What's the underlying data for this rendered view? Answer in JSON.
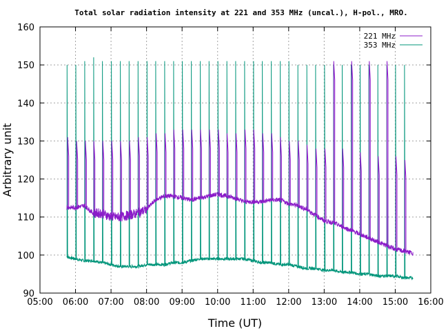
{
  "chart_data": {
    "type": "line",
    "title": "Total solar radiation intensity at 221 and 353 MHz (uncal.), H-pol., MRO.",
    "xlabel": "Time (UT)",
    "ylabel": "Arbitrary unit",
    "xlim_hours": [
      5,
      16
    ],
    "ylim": [
      90,
      160
    ],
    "x_ticks": [
      "05:00",
      "06:00",
      "07:00",
      "08:00",
      "09:00",
      "10:00",
      "11:00",
      "12:00",
      "13:00",
      "14:00",
      "15:00",
      "16:00"
    ],
    "y_ticks": [
      90,
      100,
      110,
      120,
      130,
      140,
      150,
      160
    ],
    "grid": true,
    "legend_position": "top-right",
    "series": [
      {
        "name": "221 MHz",
        "color": "#8b1bc9",
        "x_hours": [
          5.75,
          6.0,
          6.25,
          6.5,
          6.75,
          7.0,
          7.25,
          7.5,
          7.75,
          8.0,
          8.25,
          8.5,
          8.75,
          9.0,
          9.25,
          9.5,
          9.75,
          10.0,
          10.25,
          10.5,
          10.75,
          11.0,
          11.25,
          11.5,
          11.75,
          12.0,
          12.25,
          12.5,
          12.75,
          13.0,
          13.25,
          13.5,
          13.75,
          14.0,
          14.25,
          14.5,
          14.75,
          15.0,
          15.25,
          15.5
        ],
        "y": [
          112.5,
          112.5,
          113,
          111,
          111,
          110,
          110,
          110.5,
          111,
          112,
          114.5,
          115.5,
          115.5,
          115,
          114.5,
          115,
          115.5,
          116,
          115.5,
          115,
          114,
          114,
          114,
          114.5,
          114.5,
          113.5,
          113,
          112,
          110.5,
          109,
          108.5,
          107.5,
          106.5,
          105.5,
          104.5,
          103.5,
          102.5,
          101.5,
          101,
          100.5
        ],
        "burst_times_hours": [
          5.78,
          6.03,
          6.28,
          6.52,
          6.77,
          7.02,
          7.27,
          7.52,
          7.77,
          8.02,
          8.27,
          8.52,
          8.77,
          9.02,
          9.27,
          9.52,
          9.77,
          10.02,
          10.27,
          10.52,
          10.77,
          11.02,
          11.27,
          11.52,
          11.77,
          12.02,
          12.27,
          12.52,
          12.77,
          13.02,
          13.27,
          13.52,
          13.77,
          14.02,
          14.27,
          14.52,
          14.77,
          15.02,
          15.27
        ],
        "burst_peaks": [
          131,
          130,
          130,
          130,
          130,
          130,
          130,
          130,
          131,
          131,
          132,
          132,
          133,
          133,
          133,
          133,
          133,
          133,
          132,
          132,
          133,
          133,
          132,
          132,
          131,
          130,
          130,
          129,
          128,
          128,
          151,
          128,
          151,
          127,
          151,
          126,
          151,
          126,
          125
        ]
      },
      {
        "name": "353 MHz",
        "color": "#00957a",
        "x_hours": [
          5.75,
          6.0,
          6.25,
          6.5,
          6.75,
          7.0,
          7.25,
          7.5,
          7.75,
          8.0,
          8.25,
          8.5,
          8.75,
          9.0,
          9.25,
          9.5,
          9.75,
          10.0,
          10.25,
          10.5,
          10.75,
          11.0,
          11.25,
          11.5,
          11.75,
          12.0,
          12.25,
          12.5,
          12.75,
          13.0,
          13.25,
          13.5,
          13.75,
          14.0,
          14.25,
          14.5,
          14.75,
          15.0,
          15.25,
          15.5
        ],
        "y": [
          99.5,
          99,
          98.5,
          98.5,
          98,
          97.5,
          97,
          97,
          97,
          97.5,
          97.5,
          97.5,
          98,
          98,
          98.5,
          99,
          99,
          99,
          99,
          99,
          99,
          98.5,
          98,
          98,
          97.5,
          97.5,
          97,
          96.5,
          96.5,
          96,
          96,
          95.5,
          95.5,
          95,
          95,
          94.5,
          94.5,
          94.5,
          94,
          94
        ],
        "burst_times_hours": [
          5.76,
          6.01,
          6.26,
          6.51,
          6.76,
          7.01,
          7.26,
          7.51,
          7.76,
          8.01,
          8.26,
          8.51,
          8.76,
          9.01,
          9.26,
          9.51,
          9.76,
          10.01,
          10.26,
          10.51,
          10.76,
          11.01,
          11.26,
          11.51,
          11.76,
          12.01,
          12.26,
          12.51,
          12.76,
          13.01,
          13.26,
          13.51,
          13.76,
          14.01,
          14.26,
          14.51,
          14.76,
          15.01,
          15.26
        ],
        "burst_peaks": [
          150,
          150,
          151,
          152,
          151,
          151,
          151,
          151,
          151,
          151,
          151,
          151,
          151,
          151,
          151,
          151,
          151,
          151,
          151,
          151,
          151,
          151,
          151,
          151,
          151,
          151,
          150,
          150,
          150,
          150,
          150,
          150,
          150,
          150,
          150,
          150,
          150,
          150,
          150
        ]
      }
    ]
  }
}
